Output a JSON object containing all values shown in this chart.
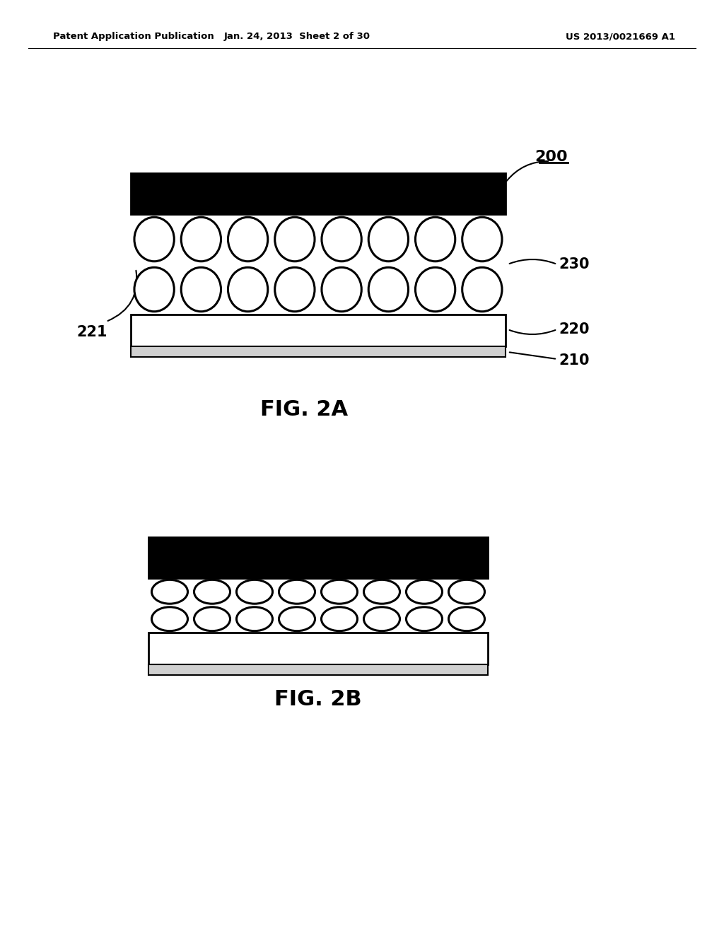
{
  "bg_color": "#ffffff",
  "header_left": "Patent Application Publication",
  "header_mid": "Jan. 24, 2013  Sheet 2 of 30",
  "header_right": "US 2013/0021669 A1",
  "fig2a_label": "FIG. 2A",
  "fig2b_label": "FIG. 2B",
  "ref_200": "200",
  "ref_210": "210",
  "ref_220": "220",
  "ref_221": "221",
  "ref_230": "230",
  "line_color": "#000000"
}
